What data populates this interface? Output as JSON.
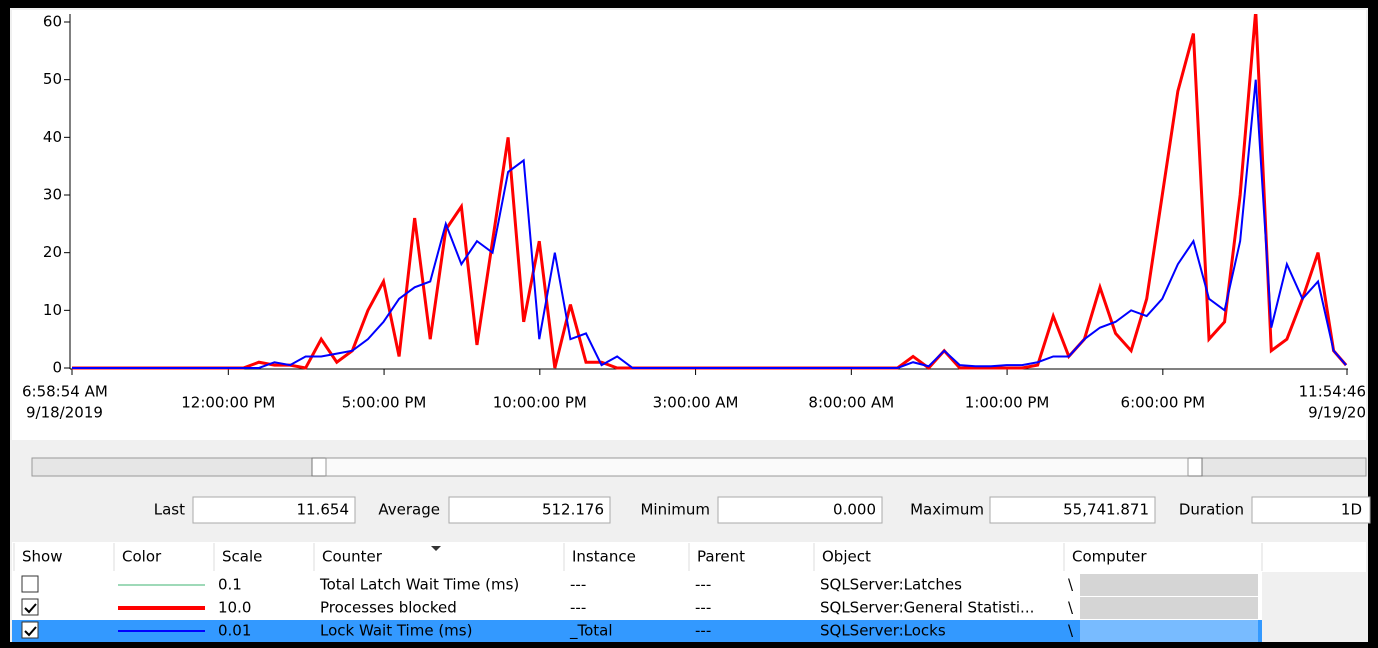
{
  "chart_data": {
    "type": "line",
    "x": [
      0,
      0.5,
      1,
      1.5,
      2,
      2.5,
      3,
      3.5,
      4,
      4.5,
      5,
      5.5,
      6,
      6.5,
      7,
      7.5,
      8,
      8.5,
      9,
      9.5,
      10,
      10.5,
      11,
      11.5,
      12,
      12.5,
      13,
      13.5,
      14,
      14.5,
      15,
      15.5,
      16,
      16.5,
      17,
      17.5,
      18,
      18.5,
      19,
      19.5,
      20,
      20.5,
      21,
      21.5,
      22,
      22.5,
      23,
      23.5,
      24,
      24.5,
      25,
      25.5,
      26,
      26.5,
      27,
      27.5,
      28,
      28.5,
      29,
      29.5,
      30,
      30.5,
      31,
      31.5,
      32,
      32.5,
      33,
      33.5,
      34,
      34.5,
      35,
      35.5,
      36,
      36.5,
      37,
      37.5,
      38,
      38.5,
      39,
      39.5,
      40,
      40.5,
      40.9
    ],
    "xlim": [
      0,
      40.93
    ],
    "xticks": [
      {
        "value": 0,
        "label": [
          "6:58:54 AM",
          "9/18/2019"
        ]
      },
      {
        "value": 5.018,
        "label": "12:00:00 PM"
      },
      {
        "value": 10.018,
        "label": "5:00:00 PM"
      },
      {
        "value": 15.018,
        "label": "10:00:00 PM"
      },
      {
        "value": 20.018,
        "label": "3:00:00 AM"
      },
      {
        "value": 25.018,
        "label": "8:00:00 AM"
      },
      {
        "value": 30.018,
        "label": "1:00:00 PM"
      },
      {
        "value": 35.018,
        "label": "6:00:00 PM"
      },
      {
        "value": 40.93,
        "label": [
          "11:54:46",
          "9/19/20"
        ]
      }
    ],
    "ylim": [
      0,
      60
    ],
    "yticks": [
      0,
      10,
      20,
      30,
      40,
      50,
      60
    ],
    "series": [
      {
        "name": "Total Latch Wait Time (ms)",
        "color": "#3cb371",
        "show": false
      },
      {
        "name": "Processes blocked",
        "color": "#ff0000",
        "show": true,
        "values": [
          0,
          0,
          0,
          0,
          0,
          0,
          0,
          0,
          0,
          0,
          0,
          0,
          1,
          0.5,
          0.5,
          0,
          5,
          1,
          3,
          10,
          15,
          2,
          26,
          5,
          24,
          28,
          4,
          22,
          40,
          8,
          22,
          0,
          11,
          1,
          1,
          0,
          0,
          0,
          0,
          0,
          0,
          0,
          0,
          0,
          0,
          0,
          0,
          0,
          0,
          0,
          0,
          0,
          0,
          0,
          2,
          0,
          3,
          0,
          0,
          0,
          0,
          0,
          0.5,
          9,
          2,
          5,
          14,
          6,
          3,
          12,
          30,
          48,
          58,
          5,
          8,
          30,
          62,
          3,
          5,
          12,
          20,
          3,
          0.5
        ]
      },
      {
        "name": "Lock Wait Time (ms)",
        "color": "#0000ff",
        "show": true,
        "values": [
          0,
          0,
          0,
          0,
          0,
          0,
          0,
          0,
          0,
          0,
          0,
          0,
          0,
          1,
          0.5,
          2,
          2,
          2.5,
          3,
          5,
          8,
          12,
          14,
          15,
          25,
          18,
          22,
          20,
          34,
          36,
          5,
          20,
          5,
          6,
          0.5,
          2,
          0,
          0,
          0,
          0,
          0,
          0,
          0,
          0,
          0,
          0,
          0,
          0,
          0,
          0,
          0,
          0,
          0,
          0,
          1,
          0.3,
          3,
          0.5,
          0.3,
          0.3,
          0.5,
          0.5,
          1,
          2,
          2,
          5,
          7,
          8,
          10,
          9,
          12,
          18,
          22,
          12,
          10,
          22,
          50,
          7,
          18,
          12,
          15,
          3,
          0.5
        ]
      }
    ]
  },
  "stats": [
    {
      "label": "Last",
      "value": "11.654"
    },
    {
      "label": "Average",
      "value": "512.176"
    },
    {
      "label": "Minimum",
      "value": "0.000"
    },
    {
      "label": "Maximum",
      "value": "55,741.871"
    },
    {
      "label": "Duration",
      "value": "1D"
    }
  ],
  "table": {
    "columns": [
      "Show",
      "Color",
      "Scale",
      "Counter",
      "Instance",
      "Parent",
      "Object",
      "Computer"
    ],
    "rows": [
      {
        "scale": "0.1",
        "instance": "---",
        "parent": "---",
        "object": "SQLServer:Latches",
        "computer": "\\"
      },
      {
        "scale": "10.0",
        "instance": "---",
        "parent": "---",
        "object": "SQLServer:General Statisti...",
        "computer": "\\"
      },
      {
        "scale": "0.01",
        "instance": "_Total",
        "parent": "---",
        "object": "SQLServer:Locks",
        "computer": "\\"
      }
    ]
  }
}
